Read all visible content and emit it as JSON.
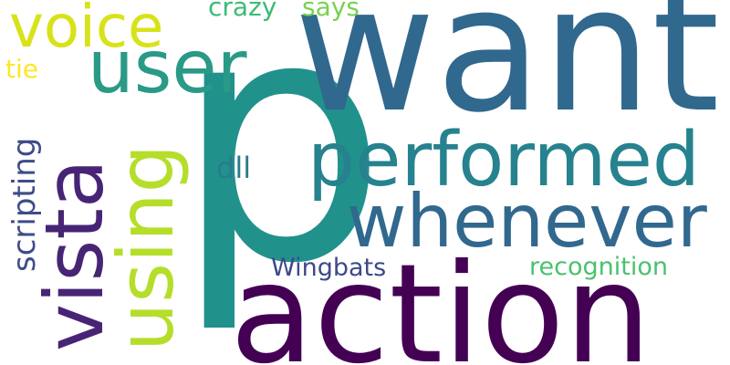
{
  "words": {
    "p": {
      "text": "p",
      "color": "#21918c"
    },
    "want": {
      "text": "want",
      "color": "#31688e"
    },
    "action": {
      "text": "action",
      "color": "#440154"
    },
    "whenever": {
      "text": "whenever",
      "color": "#31688e"
    },
    "performed": {
      "text": "performed",
      "color": "#26828e"
    },
    "user": {
      "text": "user",
      "color": "#2a9a87"
    },
    "voice": {
      "text": "voice",
      "color": "#d8e219"
    },
    "vista": {
      "text": "vista",
      "color": "#482475"
    },
    "using": {
      "text": "using",
      "color": "#b5de2b"
    },
    "scripting": {
      "text": "scripting",
      "color": "#3e4c8a"
    },
    "dll": {
      "text": "dll",
      "color": "#2a7b8e"
    },
    "wingbats": {
      "text": "Wingbats",
      "color": "#3e4989"
    },
    "recognition": {
      "text": "recognition",
      "color": "#4ac16d"
    },
    "crazy": {
      "text": "crazy",
      "color": "#3bbb75"
    },
    "says": {
      "text": "says",
      "color": "#7ad151"
    },
    "tie": {
      "text": "tie",
      "color": "#fde725"
    }
  }
}
